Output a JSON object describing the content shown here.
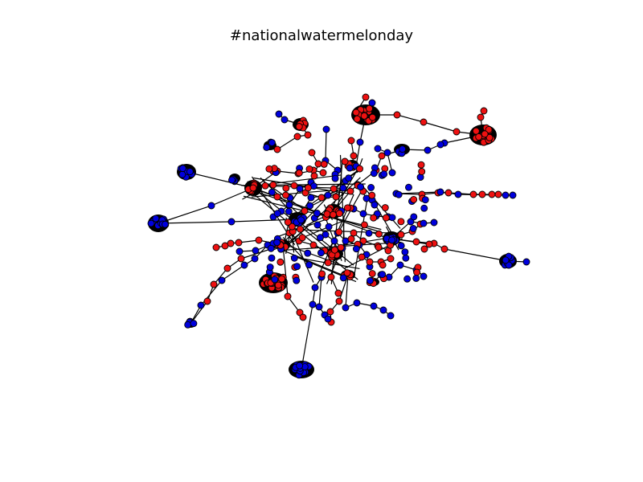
{
  "title": "#nationalwatermelonday",
  "colors": {
    "red": "#ee1111",
    "blue": "#0000dd",
    "edge": "#000000",
    "node_outline": "#000000",
    "background": "#ffffff"
  }
}
